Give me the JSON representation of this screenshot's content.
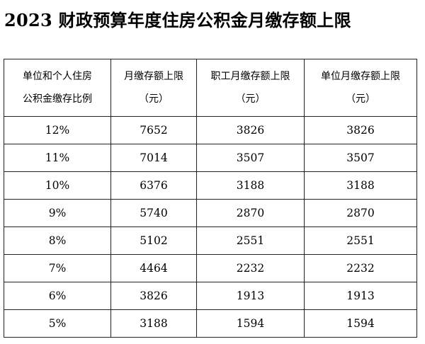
{
  "title": "2023 财政预算年度住房公积金月缴存额上限",
  "table": {
    "headers": [
      [
        "单位和个人住房",
        "公积金缴存比例"
      ],
      [
        "月缴存额上限",
        "（元）"
      ],
      [
        "职工月缴存额上限",
        "（元）"
      ],
      [
        "单位月缴存额上限",
        "（元）"
      ]
    ],
    "rows": [
      [
        "12%",
        "7652",
        "3826",
        "3826"
      ],
      [
        "11%",
        "7014",
        "3507",
        "3507"
      ],
      [
        "10%",
        "6376",
        "3188",
        "3188"
      ],
      [
        "9%",
        "5740",
        "2870",
        "2870"
      ],
      [
        "8%",
        "5102",
        "2551",
        "2551"
      ],
      [
        "7%",
        "4464",
        "2232",
        "2232"
      ],
      [
        "6%",
        "3826",
        "1913",
        "1913"
      ],
      [
        "5%",
        "3188",
        "1594",
        "1594"
      ]
    ]
  }
}
